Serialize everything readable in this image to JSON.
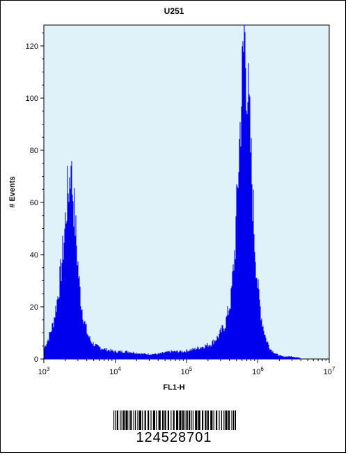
{
  "chart_data": {
    "type": "histogram",
    "title": "U251",
    "xlabel": "FL1-H",
    "ylabel": "# Events",
    "x_scale": "log",
    "xlim": [
      1000,
      10000000
    ],
    "ylim": [
      0,
      128
    ],
    "x_ticks": [
      {
        "value": 1000,
        "base": "10",
        "exp": "3"
      },
      {
        "value": 10000,
        "base": "10",
        "exp": "4"
      },
      {
        "value": 100000,
        "base": "10",
        "exp": "5"
      },
      {
        "value": 1000000,
        "base": "10",
        "exp": "6"
      },
      {
        "value": 10000000,
        "base": "10",
        "exp": "7"
      }
    ],
    "y_ticks": [
      0,
      20,
      40,
      60,
      80,
      100,
      120
    ],
    "grid": false,
    "colors": {
      "plot_background": "#dff1f9",
      "bars": "#0000ee"
    },
    "peaks": [
      {
        "x": 2400,
        "y": 74
      },
      {
        "x": 650000,
        "y": 128
      }
    ],
    "profile": {
      "x": [
        1000,
        1150,
        1350,
        1550,
        1750,
        1950,
        2100,
        2250,
        2400,
        2550,
        2700,
        2900,
        3100,
        3350,
        3700,
        4100,
        4600,
        5500,
        7000,
        10000,
        15000,
        25000,
        40000,
        60000,
        90000,
        130000,
        170000,
        220000,
        280000,
        350000,
        420000,
        480000,
        540000,
        600000,
        650000,
        700000,
        760000,
        830000,
        900000,
        1000000,
        1150000,
        1300000,
        1500000,
        1800000,
        2200000,
        3000000,
        5000000,
        7000000,
        10000000
      ],
      "y": [
        4,
        8,
        14,
        24,
        36,
        50,
        63,
        70,
        74,
        68,
        58,
        44,
        32,
        22,
        15,
        10,
        7,
        5,
        4,
        3,
        3,
        2,
        2,
        3,
        3,
        4,
        5,
        6,
        9,
        14,
        24,
        45,
        80,
        110,
        128,
        115,
        95,
        70,
        48,
        28,
        15,
        8,
        4,
        2,
        1,
        1,
        0,
        0,
        0
      ]
    }
  },
  "barcode": {
    "number": "124528701"
  }
}
